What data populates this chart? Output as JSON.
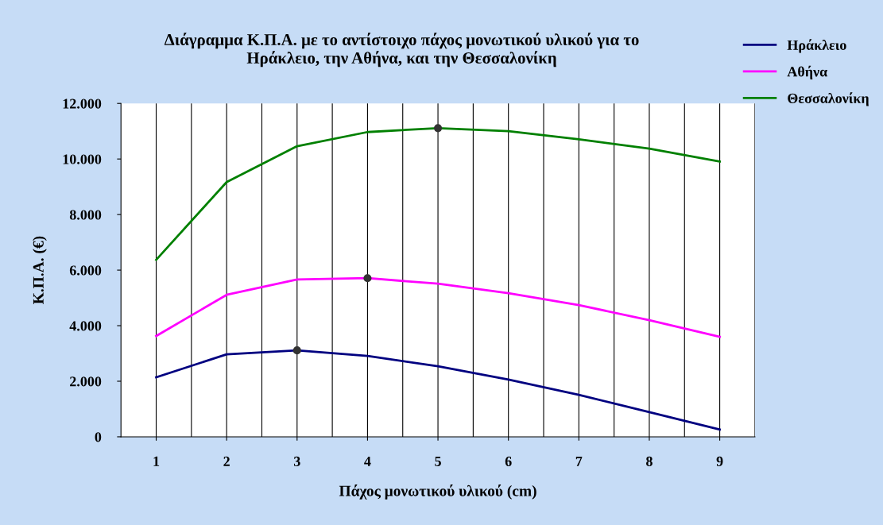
{
  "chart_data": {
    "type": "line",
    "title": "Διάγραμμα Κ.Π.Α. με το αντίστοιχο πάχος μονωτικού υλικού για το\nΗράκλειο, την Αθήνα, και την Θεσσαλονίκη",
    "xlabel": "Πάχος μονωτικού υλικού (cm)",
    "ylabel": "Κ.Π.Α. (€)",
    "categories": [
      "1",
      "2",
      "3",
      "4",
      "5",
      "6",
      "7",
      "8",
      "9"
    ],
    "series": [
      {
        "name": "Ηράκλειο",
        "color": "#000080",
        "values": [
          2140,
          2970,
          3110,
          2910,
          2540,
          2060,
          1510,
          890,
          260
        ]
      },
      {
        "name": "Αθήνα",
        "color": "#ff00ff",
        "values": [
          3630,
          5110,
          5660,
          5710,
          5510,
          5170,
          4740,
          4200,
          3600
        ]
      },
      {
        "name": "Θεσσαλονίκη",
        "color": "#008000",
        "values": [
          6370,
          9170,
          10460,
          10970,
          11110,
          11000,
          10710,
          10370,
          9910
        ]
      },
      {
        "type": "scatter",
        "color": "#333333",
        "x": [
          "3",
          "4",
          "5"
        ],
        "values": [
          3110,
          5710,
          11110
        ]
      }
    ],
    "ylim": [
      0,
      12000
    ],
    "yticks": [
      0,
      {
        "value": 2000,
        "label": "2.000"
      },
      {
        "value": 4000,
        "label": "4.000"
      },
      {
        "value": 6000,
        "label": "6.000"
      },
      {
        "value": 8000,
        "label": "8.000"
      },
      {
        "value": 10000,
        "label": "10.000"
      },
      {
        "value": 12000,
        "label": "12.000"
      }
    ],
    "grid": "x",
    "legend": "top right"
  }
}
